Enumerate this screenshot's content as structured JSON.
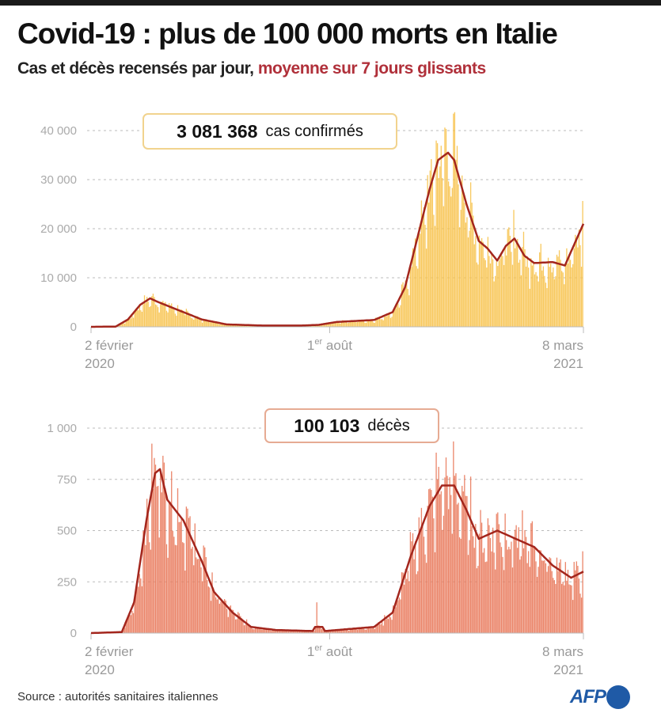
{
  "title": "Covid-19 : plus de 100 000 morts en Italie",
  "subtitle_main": "Cas et décès recensés par jour,",
  "subtitle_highlight": "moyenne sur 7 jours glissants",
  "source": "Source : autorités sanitaires italiennes",
  "logo": "AFP",
  "colors": {
    "cases_bar": "#f7c34f",
    "deaths_bar": "#e97a5c",
    "avg_line": "#a3261d",
    "subtitle_red": "#b0303a",
    "afp_blue": "#1f5aa6"
  },
  "chart_data": [
    {
      "type": "bar",
      "name": "cases",
      "annotation_value": "3 081 368",
      "annotation_label": "cas confirmés",
      "x_unit": "days since 2 février 2020",
      "xlim": [
        0,
        400
      ],
      "ylim": [
        0,
        40000
      ],
      "yticks": [
        0,
        10000,
        20000,
        30000,
        40000
      ],
      "ytick_labels": [
        "0",
        "10 000",
        "20 000",
        "30 000",
        "40 000"
      ],
      "xticks": [
        {
          "day": 0,
          "label1": "2 février",
          "label2": "2020"
        },
        {
          "day": 181,
          "label1": "1",
          "sup": "er",
          "label1b": " août",
          "label2": ""
        },
        {
          "day": 400,
          "label1": "8 mars",
          "label2": "2021"
        }
      ],
      "grid": true,
      "series_7day_avg": [
        [
          0,
          0
        ],
        [
          20,
          50
        ],
        [
          30,
          1500
        ],
        [
          40,
          4500
        ],
        [
          48,
          5800
        ],
        [
          55,
          5000
        ],
        [
          70,
          3500
        ],
        [
          90,
          1500
        ],
        [
          110,
          500
        ],
        [
          140,
          250
        ],
        [
          170,
          250
        ],
        [
          185,
          400
        ],
        [
          200,
          1000
        ],
        [
          230,
          1400
        ],
        [
          245,
          3000
        ],
        [
          255,
          8000
        ],
        [
          265,
          18000
        ],
        [
          275,
          28000
        ],
        [
          282,
          34000
        ],
        [
          290,
          35500
        ],
        [
          295,
          34000
        ],
        [
          305,
          25000
        ],
        [
          315,
          17500
        ],
        [
          322,
          16000
        ],
        [
          330,
          13500
        ],
        [
          337,
          16500
        ],
        [
          344,
          18000
        ],
        [
          352,
          14500
        ],
        [
          360,
          13000
        ],
        [
          375,
          13200
        ],
        [
          385,
          12500
        ],
        [
          392,
          16500
        ],
        [
          400,
          21000
        ]
      ]
    },
    {
      "type": "bar",
      "name": "deaths",
      "annotation_value": "100 103",
      "annotation_label": "décès",
      "x_unit": "days since 2 février 2020",
      "xlim": [
        0,
        400
      ],
      "ylim": [
        0,
        1000
      ],
      "yticks": [
        0,
        250,
        500,
        750,
        1000
      ],
      "ytick_labels": [
        "0",
        "250",
        "500",
        "750",
        "1 000"
      ],
      "xticks": [
        {
          "day": 0,
          "label1": "2 février",
          "label2": "2020"
        },
        {
          "day": 181,
          "label1": "1",
          "sup": "er",
          "label1b": " août",
          "label2": ""
        },
        {
          "day": 400,
          "label1": "8 mars",
          "label2": "2021"
        }
      ],
      "grid": true,
      "series_7day_avg": [
        [
          0,
          0
        ],
        [
          25,
          5
        ],
        [
          35,
          150
        ],
        [
          45,
          550
        ],
        [
          52,
          780
        ],
        [
          56,
          800
        ],
        [
          62,
          650
        ],
        [
          75,
          550
        ],
        [
          90,
          350
        ],
        [
          100,
          200
        ],
        [
          115,
          100
        ],
        [
          130,
          30
        ],
        [
          150,
          15
        ],
        [
          180,
          10
        ],
        [
          182,
          30
        ],
        [
          188,
          30
        ],
        [
          190,
          10
        ],
        [
          200,
          15
        ],
        [
          230,
          30
        ],
        [
          245,
          100
        ],
        [
          260,
          380
        ],
        [
          275,
          620
        ],
        [
          285,
          720
        ],
        [
          295,
          720
        ],
        [
          305,
          600
        ],
        [
          315,
          460
        ],
        [
          330,
          500
        ],
        [
          345,
          460
        ],
        [
          360,
          420
        ],
        [
          375,
          330
        ],
        [
          390,
          270
        ],
        [
          400,
          300
        ]
      ]
    }
  ]
}
